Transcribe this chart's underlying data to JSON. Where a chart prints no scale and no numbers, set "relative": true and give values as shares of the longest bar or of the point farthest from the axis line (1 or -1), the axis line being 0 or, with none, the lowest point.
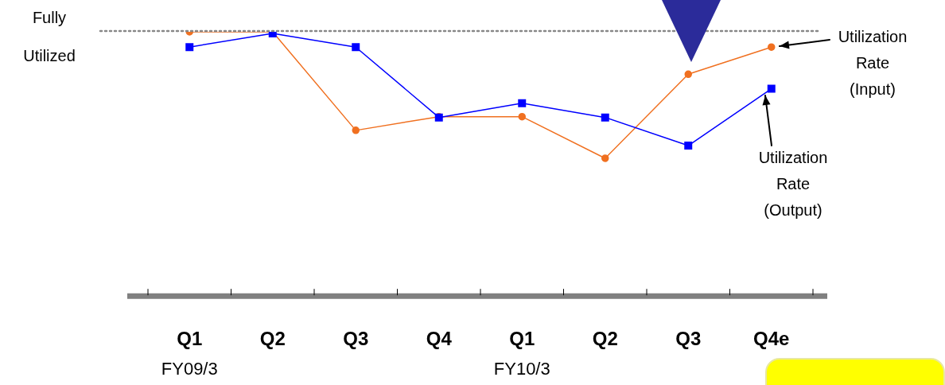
{
  "chart_data": {
    "type": "line",
    "relative": true,
    "categories": [
      "Q1",
      "Q2",
      "Q3",
      "Q4",
      "Q1",
      "Q2",
      "Q3",
      "Q4e"
    ],
    "series": [
      {
        "name": "Utilization Rate (Input)",
        "color": "#f07020",
        "marker": "circle",
        "values": [
          1,
          1,
          0.626,
          0.678,
          0.678,
          0.52,
          0.839,
          0.942
        ]
      },
      {
        "name": "Utilization Rate (Output)",
        "color": "#0000ff",
        "marker": "square",
        "values": [
          0.942,
          0.994,
          0.942,
          0.675,
          0.729,
          0.675,
          0.568,
          0.784
        ]
      }
    ],
    "ref_lines": [
      {
        "axis": "y",
        "value": 1,
        "label": "Fully Utilized",
        "color": "#888888",
        "line_style": "dotted"
      }
    ],
    "annotations": [
      "FY09/3",
      "FY10/3"
    ],
    "grid": false,
    "legend": false,
    "line_style": "solid"
  }
}
